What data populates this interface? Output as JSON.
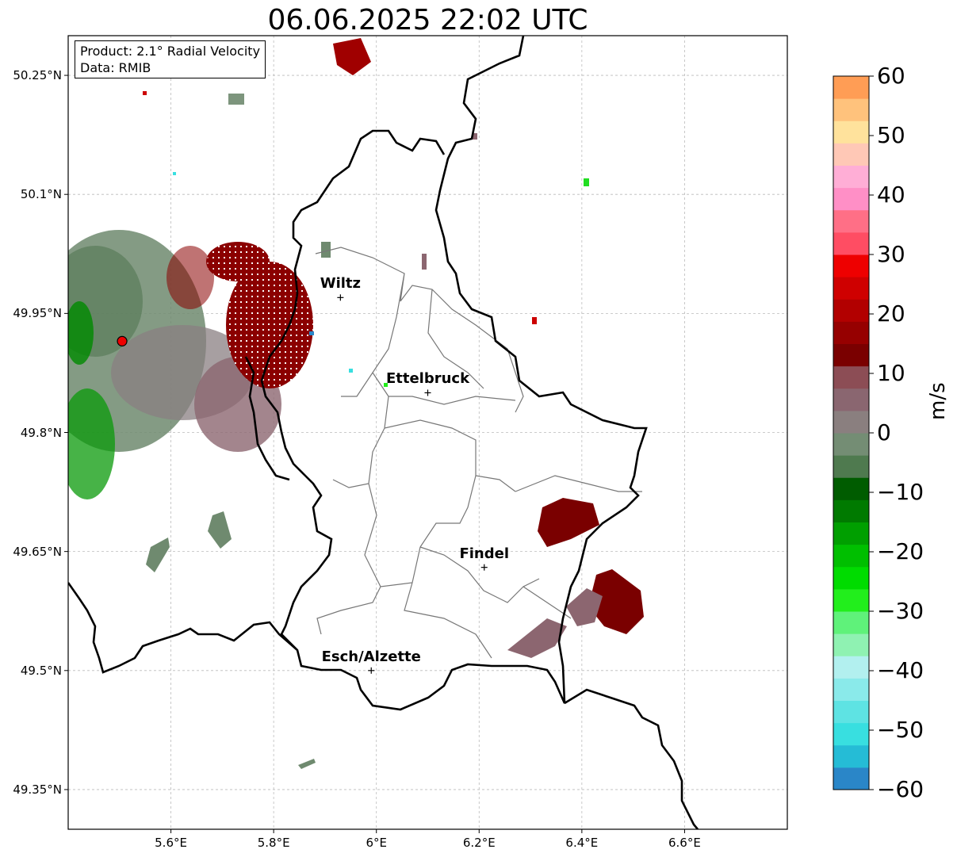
{
  "title": "06.06.2025 22:02 UTC",
  "info": {
    "product": "Product: 2.1° Radial Velocity",
    "data": "Data: RMIB"
  },
  "axes": {
    "x_ticks": [
      "5.6°E",
      "5.8°E",
      "6°E",
      "6.2°E",
      "6.4°E",
      "6.6°E"
    ],
    "y_ticks": [
      "50.25°N",
      "50.1°N",
      "49.95°N",
      "49.8°N",
      "49.65°N",
      "49.5°N",
      "49.35°N"
    ],
    "x_range": [
      5.4,
      6.8
    ],
    "y_range": [
      49.3,
      50.3
    ]
  },
  "cities": [
    {
      "name": "Wiltz",
      "lon": 5.93,
      "lat": 49.97
    },
    {
      "name": "Ettelbruck",
      "lon": 6.1,
      "lat": 49.85
    },
    {
      "name": "Findel",
      "lon": 6.21,
      "lat": 49.63
    },
    {
      "name": "Esch/Alzette",
      "lon": 5.99,
      "lat": 49.5
    }
  ],
  "radar_site": {
    "lon": 5.505,
    "lat": 49.915,
    "marker": "red-dot"
  },
  "colorbar": {
    "label": "m/s",
    "ticks": [
      "60",
      "50",
      "40",
      "30",
      "20",
      "10",
      "0",
      "−10",
      "−20",
      "−30",
      "−40",
      "−50",
      "−60"
    ],
    "range": [
      -60,
      60
    ],
    "colors": [
      "#2a86c8",
      "#25bcd6",
      "#38dfe0",
      "#5ee3e3",
      "#8aeaea",
      "#b2f0ef",
      "#8ff2b2",
      "#5ff27a",
      "#22ee1c",
      "#00dc00",
      "#00bf00",
      "#009f00",
      "#007a00",
      "#005c00",
      "#4f7a4f",
      "#748d74",
      "#8a7f7f",
      "#8a6670",
      "#8c4d55",
      "#7a0000",
      "#960000",
      "#b20000",
      "#cf0000",
      "#ee0000",
      "#ff4d63",
      "#ff6f86",
      "#ff8fc6",
      "#ffaed6",
      "#ffc8b6",
      "#ffe29c",
      "#ffc27c",
      "#ff9d55"
    ]
  }
}
